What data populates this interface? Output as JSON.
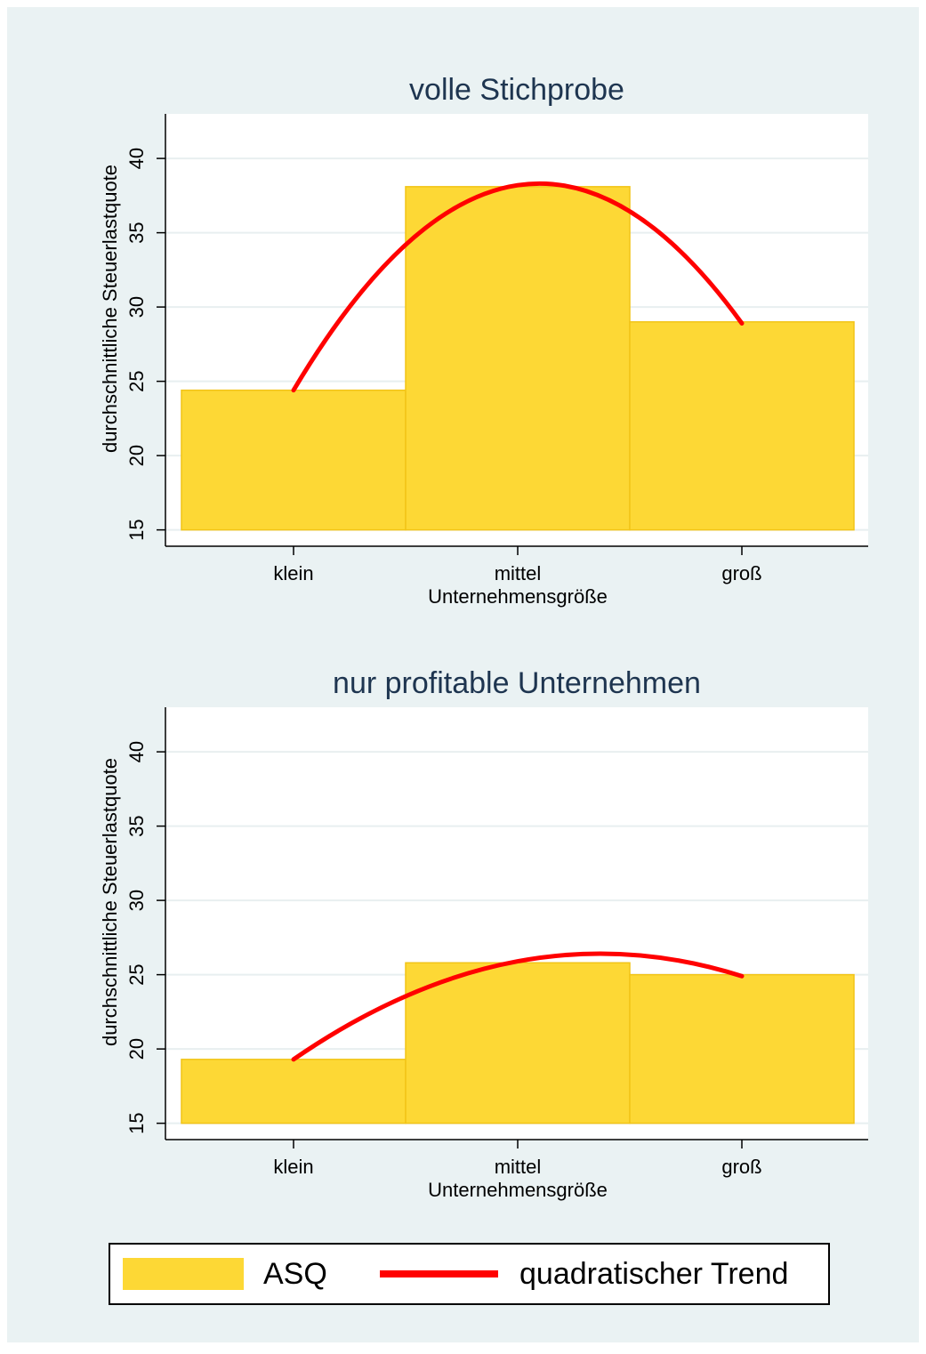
{
  "chart_data": [
    {
      "type": "bar",
      "title": "volle Stichprobe",
      "x_label": "Unternehmensgröße",
      "y_label": "durchschnittliche Steuerlastquote",
      "categories": [
        "klein",
        "mittel",
        "groß"
      ],
      "series": [
        {
          "name": "ASQ",
          "type": "bar",
          "color": "#fdd835",
          "values": [
            24.4,
            38.1,
            29.0
          ]
        },
        {
          "name": "quadratischer Trend",
          "type": "line",
          "color": "#ff0000",
          "values": [
            24.4,
            38.2,
            28.9
          ]
        }
      ],
      "ylim": [
        13.9,
        43
      ],
      "yticks": [
        15,
        20,
        25,
        30,
        35,
        40
      ],
      "grid": true
    },
    {
      "type": "bar",
      "title": "nur profitable Unternehmen",
      "x_label": "Unternehmensgröße",
      "y_label": "durchschnittliche Steuerlastquote",
      "categories": [
        "klein",
        "mittel",
        "groß"
      ],
      "series": [
        {
          "type": "bar",
          "color": "#fdd835",
          "values": [
            19.3,
            25.8,
            25.0
          ]
        },
        {
          "type": "line",
          "color": "#ff0000",
          "values": [
            19.3,
            25.9,
            24.9
          ]
        }
      ],
      "ylim": [
        13.9,
        43
      ],
      "yticks": [
        15,
        20,
        25,
        30,
        35,
        40
      ],
      "grid": true
    }
  ]
}
